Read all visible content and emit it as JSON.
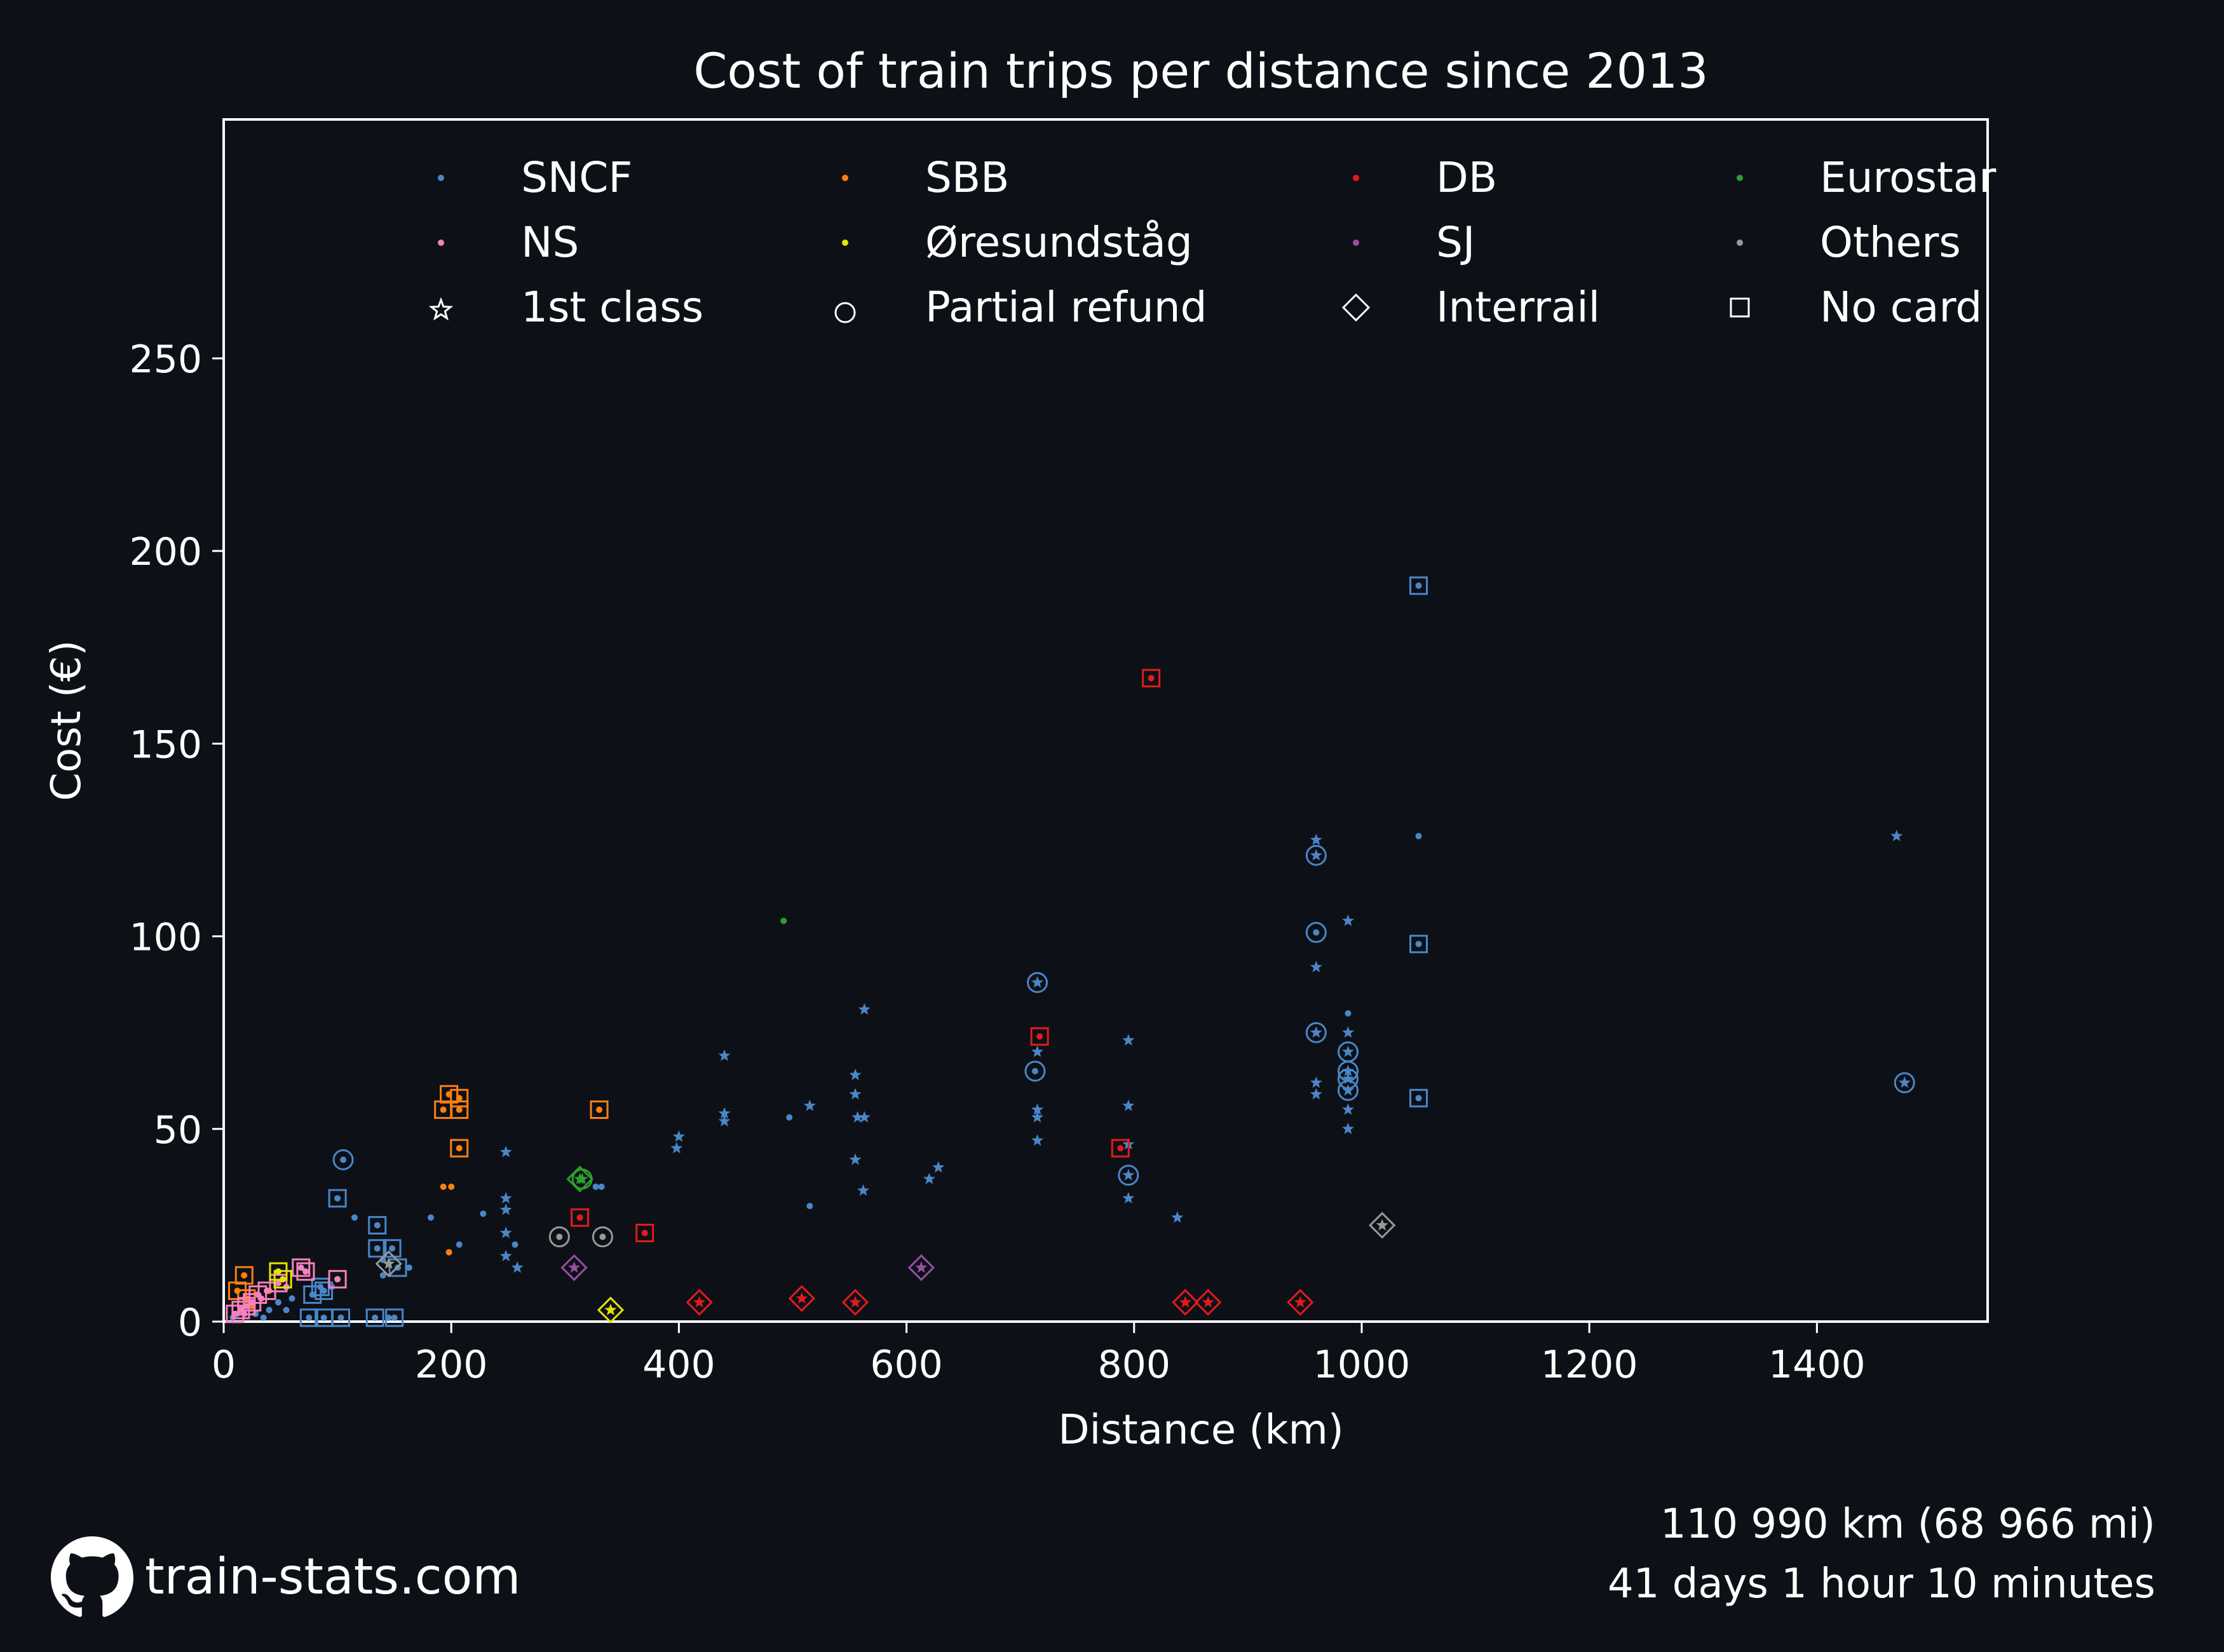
{
  "chart_data": {
    "type": "scatter",
    "title": "Cost of train trips per distance since 2013",
    "xlabel": "Distance (km)",
    "ylabel": "Cost (€)",
    "xlim": [
      0,
      1550
    ],
    "ylim": [
      0,
      312
    ],
    "x_ticks": [
      0,
      200,
      400,
      600,
      800,
      1000,
      1200,
      1400
    ],
    "y_ticks": [
      0,
      50,
      100,
      150,
      200,
      250
    ],
    "grid": false,
    "legend_position": "top",
    "legend": [
      {
        "key": "sncf",
        "label": "SNCF",
        "kind": "dot",
        "color": "#4a86c8"
      },
      {
        "key": "sbb",
        "label": "SBB",
        "kind": "dot",
        "color": "#ff7f0e"
      },
      {
        "key": "db",
        "label": "DB",
        "kind": "dot",
        "color": "#e41a1c"
      },
      {
        "key": "eurostar",
        "label": "Eurostar",
        "kind": "dot",
        "color": "#2ca02c"
      },
      {
        "key": "ns",
        "label": "NS",
        "kind": "dot",
        "color": "#f781bf"
      },
      {
        "key": "oresund",
        "label": "Øresundståg",
        "kind": "dot",
        "color": "#e5e500"
      },
      {
        "key": "sj",
        "label": "SJ",
        "kind": "dot",
        "color": "#984ea3"
      },
      {
        "key": "others",
        "label": "Others",
        "kind": "dot",
        "color": "#999999"
      },
      {
        "key": "first",
        "label": "1st class",
        "kind": "star",
        "color": "#ffffff"
      },
      {
        "key": "refund",
        "label": "Partial refund",
        "kind": "circle",
        "color": "#ffffff"
      },
      {
        "key": "interrail",
        "label": "Interrail",
        "kind": "diamond",
        "color": "#ffffff"
      },
      {
        "key": "nocard",
        "label": "No card",
        "kind": "square",
        "color": "#ffffff"
      }
    ],
    "series": [
      {
        "name": "SNCF",
        "color": "#4a86c8",
        "points": [
          {
            "x": 1050,
            "y": 191,
            "m": "dot",
            "o": "square"
          },
          {
            "x": 1050,
            "y": 98,
            "m": "dot",
            "o": "square"
          },
          {
            "x": 1050,
            "y": 58,
            "m": "dot",
            "o": "square"
          },
          {
            "x": 1050,
            "y": 126,
            "m": "dot"
          },
          {
            "x": 1470,
            "y": 126,
            "m": "star"
          },
          {
            "x": 1477,
            "y": 62,
            "m": "star",
            "o": "circle"
          },
          {
            "x": 960,
            "y": 121,
            "m": "star",
            "o": "circle"
          },
          {
            "x": 960,
            "y": 125,
            "m": "star"
          },
          {
            "x": 960,
            "y": 101,
            "m": "dot",
            "o": "circle"
          },
          {
            "x": 960,
            "y": 92,
            "m": "star"
          },
          {
            "x": 960,
            "y": 75,
            "m": "star",
            "o": "circle"
          },
          {
            "x": 960,
            "y": 62,
            "m": "star"
          },
          {
            "x": 960,
            "y": 59,
            "m": "star"
          },
          {
            "x": 988,
            "y": 104,
            "m": "star"
          },
          {
            "x": 988,
            "y": 80,
            "m": "dot"
          },
          {
            "x": 988,
            "y": 75,
            "m": "star"
          },
          {
            "x": 988,
            "y": 70,
            "m": "star",
            "o": "circle"
          },
          {
            "x": 988,
            "y": 65,
            "m": "star",
            "o": "circle"
          },
          {
            "x": 988,
            "y": 63,
            "m": "star",
            "o": "circle"
          },
          {
            "x": 988,
            "y": 60,
            "m": "star",
            "o": "circle"
          },
          {
            "x": 988,
            "y": 55,
            "m": "star"
          },
          {
            "x": 988,
            "y": 50,
            "m": "star"
          },
          {
            "x": 715,
            "y": 88,
            "m": "star",
            "o": "circle"
          },
          {
            "x": 715,
            "y": 70,
            "m": "star"
          },
          {
            "x": 713,
            "y": 65,
            "m": "dot",
            "o": "circle"
          },
          {
            "x": 715,
            "y": 55,
            "m": "star"
          },
          {
            "x": 715,
            "y": 53,
            "m": "star"
          },
          {
            "x": 715,
            "y": 47,
            "m": "star"
          },
          {
            "x": 795,
            "y": 73,
            "m": "star"
          },
          {
            "x": 795,
            "y": 56,
            "m": "star"
          },
          {
            "x": 795,
            "y": 46,
            "m": "star"
          },
          {
            "x": 795,
            "y": 38,
            "m": "star",
            "o": "circle"
          },
          {
            "x": 795,
            "y": 32,
            "m": "star"
          },
          {
            "x": 838,
            "y": 27,
            "m": "star"
          },
          {
            "x": 563,
            "y": 81,
            "m": "star"
          },
          {
            "x": 555,
            "y": 64,
            "m": "star"
          },
          {
            "x": 555,
            "y": 59,
            "m": "star"
          },
          {
            "x": 557,
            "y": 53,
            "m": "star"
          },
          {
            "x": 563,
            "y": 53,
            "m": "star"
          },
          {
            "x": 555,
            "y": 42,
            "m": "star"
          },
          {
            "x": 562,
            "y": 34,
            "m": "star"
          },
          {
            "x": 515,
            "y": 56,
            "m": "star"
          },
          {
            "x": 497,
            "y": 53,
            "m": "dot"
          },
          {
            "x": 515,
            "y": 30,
            "m": "dot"
          },
          {
            "x": 440,
            "y": 69,
            "m": "star"
          },
          {
            "x": 440,
            "y": 54,
            "m": "star"
          },
          {
            "x": 440,
            "y": 52,
            "m": "star"
          },
          {
            "x": 400,
            "y": 48,
            "m": "star"
          },
          {
            "x": 398,
            "y": 45,
            "m": "star"
          },
          {
            "x": 628,
            "y": 40,
            "m": "star"
          },
          {
            "x": 620,
            "y": 37,
            "m": "star"
          },
          {
            "x": 248,
            "y": 44,
            "m": "star"
          },
          {
            "x": 248,
            "y": 32,
            "m": "star"
          },
          {
            "x": 248,
            "y": 29,
            "m": "star"
          },
          {
            "x": 248,
            "y": 23,
            "m": "star"
          },
          {
            "x": 248,
            "y": 17,
            "m": "star"
          },
          {
            "x": 256,
            "y": 20,
            "m": "dot"
          },
          {
            "x": 258,
            "y": 14,
            "m": "star"
          },
          {
            "x": 228,
            "y": 28,
            "m": "dot"
          },
          {
            "x": 182,
            "y": 27,
            "m": "dot"
          },
          {
            "x": 207,
            "y": 20,
            "m": "dot"
          },
          {
            "x": 332,
            "y": 35,
            "m": "dot"
          },
          {
            "x": 327,
            "y": 35,
            "m": "dot"
          },
          {
            "x": 105,
            "y": 42,
            "m": "dot",
            "o": "circle"
          },
          {
            "x": 100,
            "y": 32,
            "m": "dot",
            "o": "square"
          },
          {
            "x": 115,
            "y": 27,
            "m": "dot"
          },
          {
            "x": 135,
            "y": 25,
            "m": "dot",
            "o": "square"
          },
          {
            "x": 135,
            "y": 19,
            "m": "dot",
            "o": "square"
          },
          {
            "x": 148,
            "y": 19,
            "m": "dot",
            "o": "square"
          },
          {
            "x": 140,
            "y": 16,
            "m": "dot"
          },
          {
            "x": 153,
            "y": 14,
            "m": "dot",
            "o": "square"
          },
          {
            "x": 163,
            "y": 14,
            "m": "dot"
          },
          {
            "x": 140,
            "y": 12,
            "m": "dot"
          },
          {
            "x": 85,
            "y": 9,
            "m": "dot",
            "o": "square"
          },
          {
            "x": 88,
            "y": 8,
            "m": "dot",
            "o": "square"
          },
          {
            "x": 78,
            "y": 7,
            "m": "dot",
            "o": "square"
          },
          {
            "x": 95,
            "y": 9,
            "m": "dot"
          },
          {
            "x": 60,
            "y": 6,
            "m": "dot"
          },
          {
            "x": 48,
            "y": 5,
            "m": "dot"
          },
          {
            "x": 55,
            "y": 3,
            "m": "dot"
          },
          {
            "x": 40,
            "y": 3,
            "m": "dot"
          },
          {
            "x": 28,
            "y": 2,
            "m": "dot"
          },
          {
            "x": 35,
            "y": 1,
            "m": "dot"
          },
          {
            "x": 75,
            "y": 1,
            "m": "dot",
            "o": "square"
          },
          {
            "x": 88,
            "y": 1,
            "m": "dot",
            "o": "square"
          },
          {
            "x": 103,
            "y": 1,
            "m": "dot",
            "o": "square"
          },
          {
            "x": 133,
            "y": 1,
            "m": "dot",
            "o": "square"
          },
          {
            "x": 150,
            "y": 1,
            "m": "dot",
            "o": "square"
          },
          {
            "x": 145,
            "y": 1,
            "m": "dot"
          },
          {
            "x": 12,
            "y": 2,
            "m": "dot"
          },
          {
            "x": 8,
            "y": 1,
            "m": "dot"
          }
        ]
      },
      {
        "name": "SBB",
        "color": "#ff7f0e",
        "points": [
          {
            "x": 198,
            "y": 59,
            "m": "dot",
            "o": "square"
          },
          {
            "x": 207,
            "y": 58,
            "m": "dot",
            "o": "square"
          },
          {
            "x": 193,
            "y": 55,
            "m": "dot",
            "o": "square"
          },
          {
            "x": 207,
            "y": 55,
            "m": "dot",
            "o": "square"
          },
          {
            "x": 330,
            "y": 55,
            "m": "dot",
            "o": "square"
          },
          {
            "x": 207,
            "y": 45,
            "m": "dot",
            "o": "square"
          },
          {
            "x": 193,
            "y": 35,
            "m": "dot"
          },
          {
            "x": 200,
            "y": 35,
            "m": "dot"
          },
          {
            "x": 198,
            "y": 18,
            "m": "dot"
          },
          {
            "x": 18,
            "y": 12,
            "m": "dot",
            "o": "square"
          },
          {
            "x": 12,
            "y": 8,
            "m": "dot",
            "o": "square"
          },
          {
            "x": 20,
            "y": 6,
            "m": "dot",
            "o": "square"
          },
          {
            "x": 40,
            "y": 8,
            "m": "dot"
          },
          {
            "x": 25,
            "y": 4,
            "m": "dot"
          }
        ]
      },
      {
        "name": "DB",
        "color": "#e41a1c",
        "points": [
          {
            "x": 815,
            "y": 167,
            "m": "dot",
            "o": "square"
          },
          {
            "x": 717,
            "y": 74,
            "m": "dot",
            "o": "square"
          },
          {
            "x": 788,
            "y": 45,
            "m": "dot",
            "o": "square"
          },
          {
            "x": 313,
            "y": 27,
            "m": "dot",
            "o": "square"
          },
          {
            "x": 370,
            "y": 23,
            "m": "dot",
            "o": "square"
          },
          {
            "x": 418,
            "y": 5,
            "m": "star",
            "o": "diamond"
          },
          {
            "x": 508,
            "y": 6,
            "m": "star",
            "o": "diamond"
          },
          {
            "x": 555,
            "y": 5,
            "m": "star",
            "o": "diamond"
          },
          {
            "x": 845,
            "y": 5,
            "m": "star",
            "o": "diamond"
          },
          {
            "x": 865,
            "y": 5,
            "m": "star",
            "o": "diamond"
          },
          {
            "x": 946,
            "y": 5,
            "m": "star",
            "o": "diamond"
          }
        ]
      },
      {
        "name": "Eurostar",
        "color": "#2ca02c",
        "points": [
          {
            "x": 492,
            "y": 104,
            "m": "dot"
          },
          {
            "x": 313,
            "y": 37,
            "m": "star",
            "o": "diamond"
          },
          {
            "x": 315,
            "y": 37,
            "m": "star",
            "o": "circle"
          }
        ]
      },
      {
        "name": "NS",
        "color": "#f781bf",
        "points": [
          {
            "x": 68,
            "y": 14,
            "m": "dot",
            "o": "square"
          },
          {
            "x": 72,
            "y": 13,
            "m": "dot",
            "o": "square"
          },
          {
            "x": 100,
            "y": 11,
            "m": "dot",
            "o": "square"
          },
          {
            "x": 48,
            "y": 10,
            "m": "dot",
            "o": "square"
          },
          {
            "x": 38,
            "y": 8,
            "m": "dot",
            "o": "square"
          },
          {
            "x": 30,
            "y": 7,
            "m": "dot",
            "o": "square"
          },
          {
            "x": 25,
            "y": 5,
            "m": "dot",
            "o": "square"
          },
          {
            "x": 20,
            "y": 4,
            "m": "dot",
            "o": "square"
          },
          {
            "x": 15,
            "y": 3,
            "m": "dot",
            "o": "square"
          },
          {
            "x": 10,
            "y": 2,
            "m": "dot",
            "o": "square"
          },
          {
            "x": 55,
            "y": 9,
            "m": "dot"
          },
          {
            "x": 33,
            "y": 6,
            "m": "dot"
          },
          {
            "x": 18,
            "y": 2,
            "m": "dot"
          }
        ]
      },
      {
        "name": "Øresundståg",
        "color": "#e5e500",
        "points": [
          {
            "x": 340,
            "y": 3,
            "m": "star",
            "o": "diamond"
          },
          {
            "x": 48,
            "y": 13,
            "m": "dot",
            "o": "square"
          },
          {
            "x": 52,
            "y": 11,
            "m": "dot",
            "o": "square"
          }
        ]
      },
      {
        "name": "SJ",
        "color": "#984ea3",
        "points": [
          {
            "x": 308,
            "y": 14,
            "m": "star",
            "o": "diamond"
          },
          {
            "x": 613,
            "y": 14,
            "m": "star",
            "o": "diamond"
          }
        ]
      },
      {
        "name": "Others",
        "color": "#999999",
        "points": [
          {
            "x": 1018,
            "y": 25,
            "m": "star",
            "o": "diamond"
          },
          {
            "x": 295,
            "y": 22,
            "m": "dot",
            "o": "circle"
          },
          {
            "x": 333,
            "y": 22,
            "m": "dot",
            "o": "circle"
          },
          {
            "x": 145,
            "y": 15,
            "m": "star",
            "o": "diamond"
          }
        ]
      }
    ]
  },
  "footer": {
    "site": "train-stats.com",
    "distance_total": "110 990 km (68 966 mi)",
    "duration_total": "41 days 1 hour 10 minutes",
    "logo_icon": "github-icon"
  }
}
